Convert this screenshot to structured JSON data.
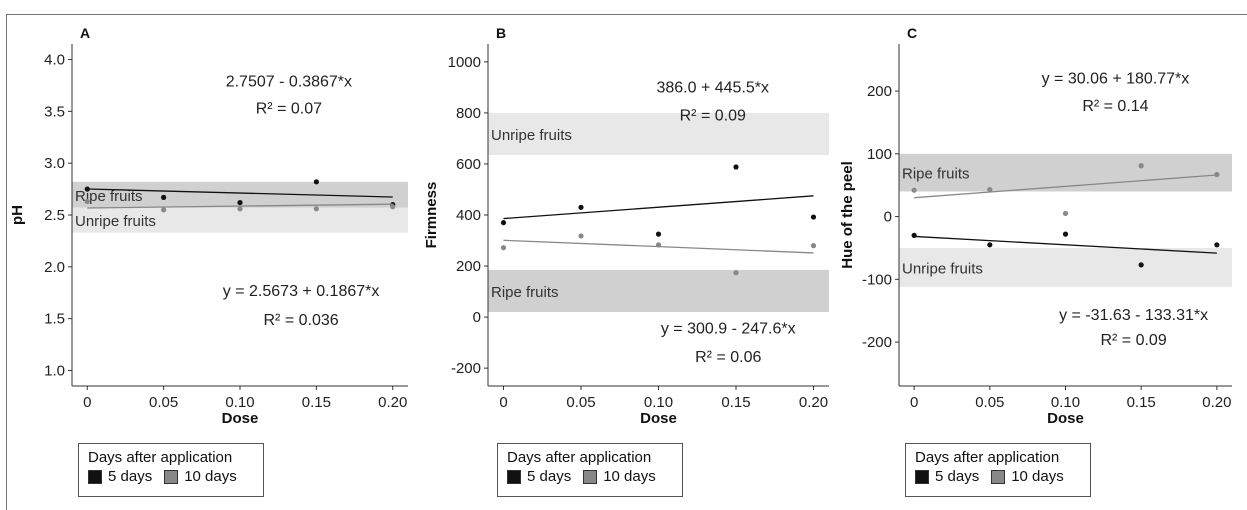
{
  "legend": {
    "title": "Days after application",
    "items": [
      {
        "label": "5 days",
        "color": "#111111"
      },
      {
        "label": "10 days",
        "color": "#888888"
      }
    ]
  },
  "chart_data": [
    {
      "type": "scatter",
      "panel": "A",
      "xlabel": "Dose",
      "ylabel": "pH",
      "xlim": [
        -0.01,
        0.21
      ],
      "ylim": [
        0.85,
        4.15
      ],
      "xticks": [
        0,
        0.05,
        0.1,
        0.15,
        0.2
      ],
      "xtick_labels": [
        "0",
        "0.05",
        "0.10",
        "0.15",
        "0.20"
      ],
      "yticks": [
        1.0,
        1.5,
        2.0,
        2.5,
        3.0,
        3.5,
        4.0
      ],
      "ytick_labels": [
        "1.0",
        "1.5",
        "2.0",
        "2.5",
        "3.0",
        "3.5",
        "4.0"
      ],
      "bands": [
        {
          "label": "Ripe fruits",
          "y0": 2.57,
          "y1": 2.82,
          "color": "#d0d0d0"
        },
        {
          "label": "Unripe fruits",
          "y0": 2.33,
          "y1": 2.57,
          "color": "#e8e8e8"
        }
      ],
      "series": [
        {
          "name": "5 days",
          "color": "#111111",
          "x": [
            0,
            0.05,
            0.1,
            0.15,
            0.2
          ],
          "y": [
            2.75,
            2.67,
            2.62,
            2.82,
            2.6
          ],
          "fit": {
            "intercept": 2.7507,
            "slope": -0.3867
          }
        },
        {
          "name": "10 days",
          "color": "#888888",
          "x": [
            0,
            0.05,
            0.1,
            0.15,
            0.2
          ],
          "y": [
            2.63,
            2.55,
            2.56,
            2.56,
            2.58
          ],
          "fit": {
            "intercept": 2.5673,
            "slope": 0.1867
          }
        }
      ],
      "annotations": [
        {
          "eq": "2.7507 - 0.3867*x",
          "r2": "R² = 0.07",
          "x": 0.132,
          "y": 3.74,
          "y2": 3.48
        },
        {
          "eq": "y = 2.5673 + 0.1867*x",
          "r2": "R² = 0.036",
          "x": 0.14,
          "y": 1.72,
          "y2": 1.44
        }
      ]
    },
    {
      "type": "scatter",
      "panel": "B",
      "xlabel": "Dose",
      "ylabel": "Firmness",
      "xlim": [
        -0.01,
        0.21
      ],
      "ylim": [
        -270,
        1070
      ],
      "xticks": [
        0,
        0.05,
        0.1,
        0.15,
        0.2
      ],
      "xtick_labels": [
        "0",
        "0.05",
        "0.10",
        "0.15",
        "0.20"
      ],
      "yticks": [
        -200,
        0,
        200,
        400,
        600,
        800,
        1000
      ],
      "ytick_labels": [
        "-200",
        "0",
        "200",
        "400",
        "600",
        "800",
        "1000"
      ],
      "bands": [
        {
          "label": "Unripe fruits",
          "y0": 635,
          "y1": 800,
          "color": "#e8e8e8"
        },
        {
          "label": "Ripe fruits",
          "y0": 20,
          "y1": 185,
          "color": "#d0d0d0"
        }
      ],
      "series": [
        {
          "name": "5 days",
          "color": "#111111",
          "x": [
            0,
            0.05,
            0.1,
            0.15,
            0.2
          ],
          "y": [
            370,
            430,
            325,
            588,
            392
          ],
          "fit": {
            "intercept": 386.0,
            "slope": 445.5
          }
        },
        {
          "name": "10 days",
          "color": "#888888",
          "x": [
            0,
            0.05,
            0.1,
            0.15,
            0.2
          ],
          "y": [
            272,
            318,
            283,
            174,
            280
          ],
          "fit": {
            "intercept": 300.9,
            "slope": -247.6
          }
        }
      ],
      "annotations": [
        {
          "eq": "386.0 + 445.5*x",
          "r2": "R² = 0.09",
          "x": 0.135,
          "y": 880,
          "y2": 770
        },
        {
          "eq": "y = 300.9 - 247.6*x",
          "r2": "R² = 0.06",
          "x": 0.145,
          "y": -65,
          "y2": -175
        }
      ]
    },
    {
      "type": "scatter",
      "panel": "C",
      "xlabel": "Dose",
      "ylabel": "Hue of the peel",
      "xlim": [
        -0.01,
        0.21
      ],
      "ylim": [
        -270,
        275
      ],
      "xticks": [
        0,
        0.05,
        0.1,
        0.15,
        0.2
      ],
      "xtick_labels": [
        "0",
        "0.05",
        "0.10",
        "0.15",
        "0.20"
      ],
      "yticks": [
        -200,
        -100,
        0,
        100,
        200
      ],
      "ytick_labels": [
        "-200",
        "-100",
        "0",
        "100",
        "200"
      ],
      "bands": [
        {
          "label": "Ripe fruits",
          "y0": 40,
          "y1": 100,
          "color": "#d0d0d0"
        },
        {
          "label": "Unripe fruits",
          "y0": -112,
          "y1": -50,
          "color": "#e8e8e8"
        }
      ],
      "series": [
        {
          "name": "5 days",
          "color": "#111111",
          "x": [
            0,
            0.05,
            0.1,
            0.15,
            0.2
          ],
          "y": [
            -30,
            -45,
            -28,
            -77,
            -45
          ],
          "fit": {
            "intercept": -31.63,
            "slope": -133.31
          }
        },
        {
          "name": "10 days",
          "color": "#888888",
          "x": [
            0,
            0.05,
            0.1,
            0.15,
            0.2
          ],
          "y": [
            42,
            43,
            5,
            81,
            67
          ],
          "fit": {
            "intercept": 30.06,
            "slope": 180.77
          }
        }
      ],
      "annotations": [
        {
          "eq": "y = 30.06 + 180.77*x",
          "r2": "R² = 0.14",
          "x": 0.133,
          "y": 212,
          "y2": 168
        },
        {
          "eq": "y = -31.63 - 133.31*x",
          "r2": "R² = 0.09",
          "x": 0.145,
          "y": -165,
          "y2": -205
        }
      ]
    }
  ]
}
